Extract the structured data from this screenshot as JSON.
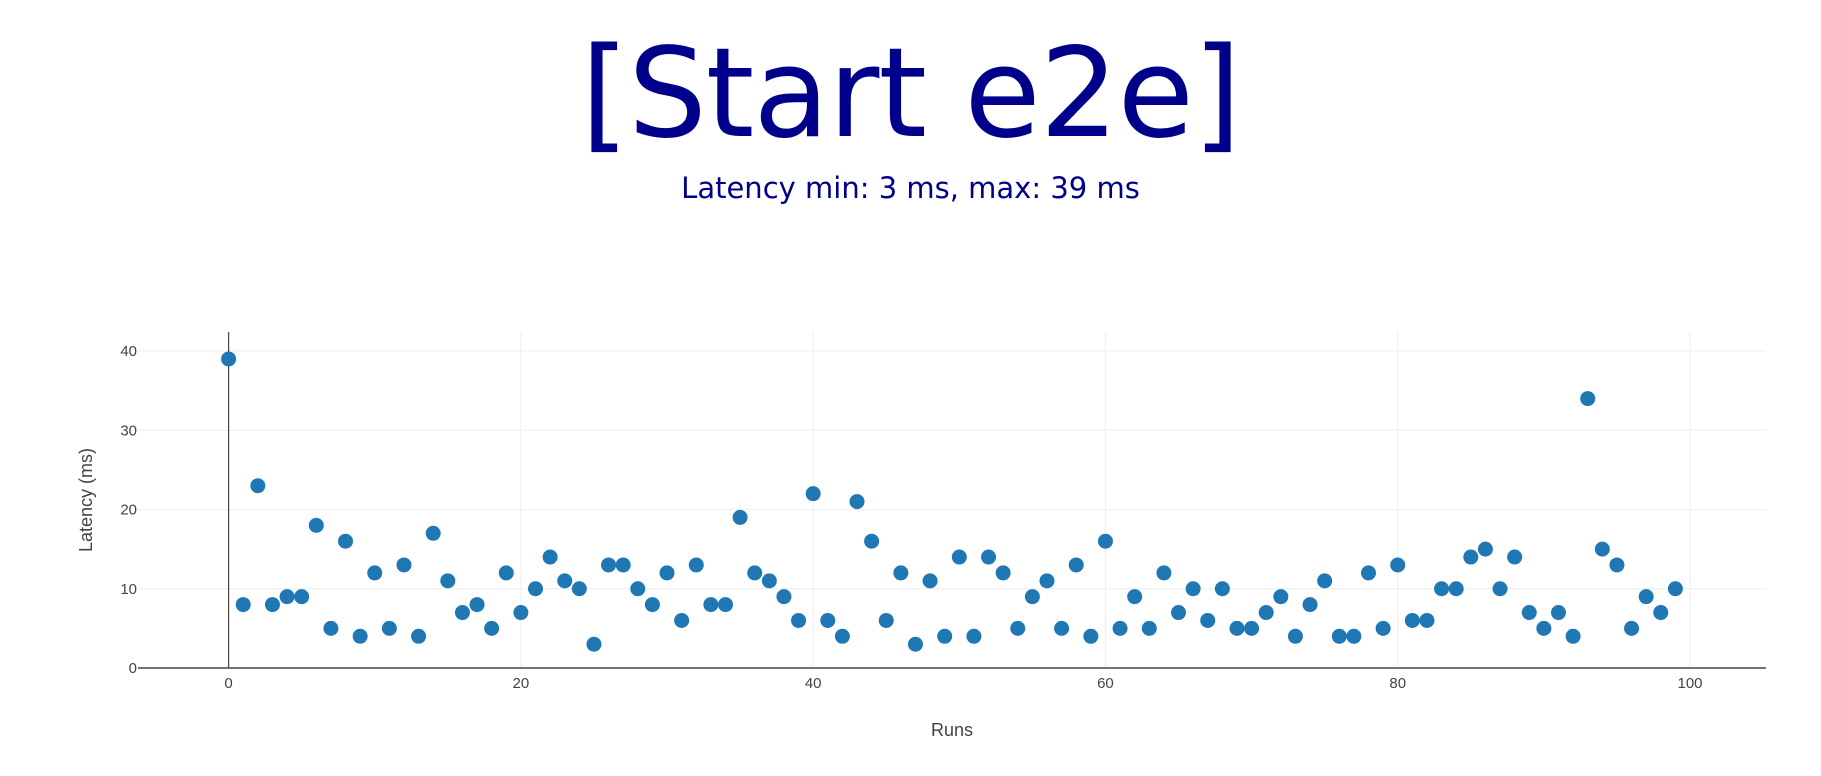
{
  "header": {
    "title": "[Start e2e]",
    "subtitle": "Latency min: 3 ms, max: 39 ms"
  },
  "colors": {
    "title": "#00008b",
    "marker": "#1f77b4",
    "grid": "#eeeeee",
    "axis": "#444444"
  },
  "chart_data": {
    "type": "scatter",
    "title": "",
    "xlabel": "Runs",
    "ylabel": "Latency (ms)",
    "xlim": [
      -6.2,
      105.2
    ],
    "ylim": [
      0,
      42.4
    ],
    "xticks": [
      0,
      20,
      40,
      60,
      80,
      100
    ],
    "yticks": [
      0,
      10,
      20,
      30,
      40
    ],
    "grid": true,
    "series": [
      {
        "name": "Latency",
        "x": [
          0,
          1,
          2,
          3,
          4,
          5,
          6,
          7,
          8,
          9,
          10,
          11,
          12,
          13,
          14,
          15,
          16,
          17,
          18,
          19,
          20,
          21,
          22,
          23,
          24,
          25,
          26,
          27,
          28,
          29,
          30,
          31,
          32,
          33,
          34,
          35,
          36,
          37,
          38,
          39,
          40,
          41,
          42,
          43,
          44,
          45,
          46,
          47,
          48,
          49,
          50,
          51,
          52,
          53,
          54,
          55,
          56,
          57,
          58,
          59,
          60,
          61,
          62,
          63,
          64,
          65,
          66,
          67,
          68,
          69,
          70,
          71,
          72,
          73,
          74,
          75,
          76,
          77,
          78,
          79,
          80,
          81,
          82,
          83,
          84,
          85,
          86,
          87,
          88,
          89,
          90,
          91,
          92,
          93,
          94,
          95,
          96,
          97,
          98,
          99
        ],
        "y": [
          39,
          8,
          23,
          8,
          9,
          9,
          18,
          5,
          16,
          4,
          12,
          5,
          13,
          4,
          17,
          11,
          7,
          8,
          5,
          12,
          7,
          10,
          14,
          11,
          10,
          3,
          13,
          13,
          10,
          8,
          12,
          6,
          13,
          8,
          8,
          19,
          12,
          11,
          9,
          6,
          22,
          6,
          4,
          21,
          16,
          6,
          12,
          3,
          11,
          4,
          14,
          4,
          14,
          12,
          5,
          9,
          11,
          5,
          13,
          4,
          16,
          5,
          9,
          5,
          12,
          7,
          10,
          6,
          10,
          5,
          5,
          7,
          9,
          4,
          8,
          11,
          4,
          4,
          12,
          5,
          13,
          6,
          6,
          10,
          10,
          14,
          15,
          10,
          14,
          7,
          5,
          7,
          4,
          34,
          15,
          13,
          5,
          9,
          7,
          10
        ]
      }
    ]
  }
}
